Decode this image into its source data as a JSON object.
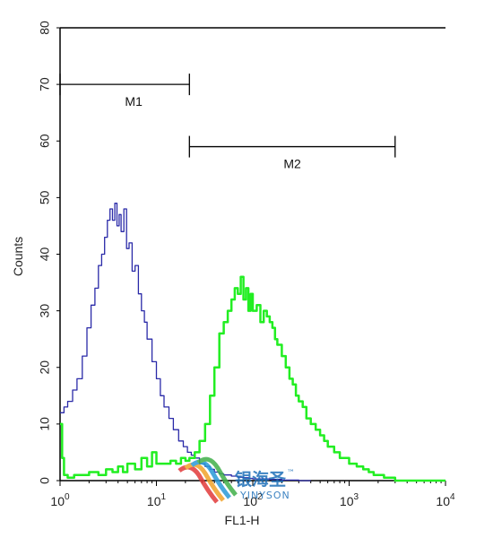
{
  "chart_data": {
    "type": "line",
    "xlabel": "FL1-H",
    "ylabel": "Counts",
    "xscale": "log",
    "xlim": [
      1,
      10000
    ],
    "ylim": [
      0,
      80
    ],
    "x_ticks": [
      {
        "base": "10",
        "exp": "0",
        "value": 1
      },
      {
        "base": "10",
        "exp": "1",
        "value": 10
      },
      {
        "base": "10",
        "exp": "2",
        "value": 100
      },
      {
        "base": "10",
        "exp": "3",
        "value": 1000
      },
      {
        "base": "10",
        "exp": "4",
        "value": 10000
      }
    ],
    "y_ticks": [
      "0",
      "10",
      "20",
      "30",
      "40",
      "50",
      "60",
      "70",
      "80"
    ],
    "gates": [
      {
        "label": "M1",
        "x_start": 1,
        "x_end": 22,
        "y": 70
      },
      {
        "label": "M2",
        "x_start": 22,
        "x_end": 3000,
        "y": 59
      }
    ],
    "series": [
      {
        "color": "#2a2aa8",
        "x": [
          1.0,
          1.1,
          1.2,
          1.35,
          1.5,
          1.7,
          1.9,
          2.1,
          2.3,
          2.5,
          2.7,
          2.9,
          3.1,
          3.3,
          3.5,
          3.7,
          3.9,
          4.1,
          4.3,
          4.6,
          4.9,
          5.2,
          5.6,
          6.0,
          6.5,
          7.0,
          7.5,
          8.0,
          9.0,
          10.0,
          11.0,
          12.0,
          13.5,
          15.0,
          17.0,
          19.0,
          21.0,
          23.0,
          25.0,
          28.0,
          32.0,
          36.0,
          40.0,
          45.0,
          50.0,
          60.0,
          70.0,
          80.0,
          90.0,
          100.0,
          150.0,
          200.0,
          300.0,
          400.0
        ],
        "y": [
          12,
          13,
          14,
          16,
          18,
          22,
          27,
          31,
          34,
          38,
          40,
          43,
          46,
          48,
          46,
          49,
          45,
          47,
          44,
          48,
          41,
          42,
          37,
          38,
          33,
          30,
          28,
          25,
          21,
          18,
          15,
          13,
          11,
          9,
          7,
          6,
          5,
          4.5,
          4,
          3,
          2.5,
          2,
          1.5,
          1.2,
          1,
          0.8,
          0.6,
          0.5,
          0.4,
          0.3,
          0.2,
          0.1,
          0,
          0
        ]
      },
      {
        "color": "#22ee22",
        "x": [
          1.0,
          1.05,
          1.1,
          1.2,
          1.4,
          1.7,
          2.0,
          2.5,
          3.0,
          3.5,
          4.0,
          4.5,
          5.0,
          6.0,
          7.0,
          8.0,
          9.0,
          10.0,
          12.0,
          14.0,
          16.0,
          18.0,
          20.0,
          22.0,
          25.0,
          28.0,
          32.0,
          36.0,
          40.0,
          45.0,
          50.0,
          55.0,
          60.0,
          65.0,
          70.0,
          75.0,
          80.0,
          85.0,
          90.0,
          95.0,
          100.0,
          110.0,
          120.0,
          130.0,
          140.0,
          150.0,
          160.0,
          170.0,
          180.0,
          200.0,
          220.0,
          240.0,
          260.0,
          280.0,
          300.0,
          330.0,
          360.0,
          400.0,
          450.0,
          500.0,
          550.0,
          600.0,
          700.0,
          800.0,
          900.0,
          1000.0,
          1200.0,
          1400.0,
          1600.0,
          1800.0,
          2000.0,
          2300.0,
          2600.0,
          3000.0,
          4000.0,
          6000.0,
          8000.0,
          10000.0
        ],
        "y": [
          10,
          4,
          1,
          0.5,
          1,
          1,
          1.5,
          1,
          2,
          1.5,
          2.5,
          1.5,
          3,
          2,
          4,
          2.5,
          5,
          3,
          3,
          3.5,
          3,
          4,
          3.5,
          4,
          5,
          7,
          10,
          15,
          20,
          26,
          28,
          30,
          32,
          34,
          33,
          36,
          32,
          34,
          30,
          33,
          30,
          31,
          28,
          30,
          29,
          28,
          27,
          25,
          24,
          22,
          20,
          18,
          17,
          15,
          14,
          13,
          11,
          10,
          9,
          8,
          7,
          6,
          5,
          4,
          4,
          3,
          2.5,
          2,
          1.5,
          1,
          1,
          0.5,
          0.5,
          0,
          0,
          0,
          0,
          0
        ]
      }
    ]
  },
  "watermark": {
    "cn_text": "银海圣",
    "tm": "™",
    "en_text": "YINYSON"
  }
}
